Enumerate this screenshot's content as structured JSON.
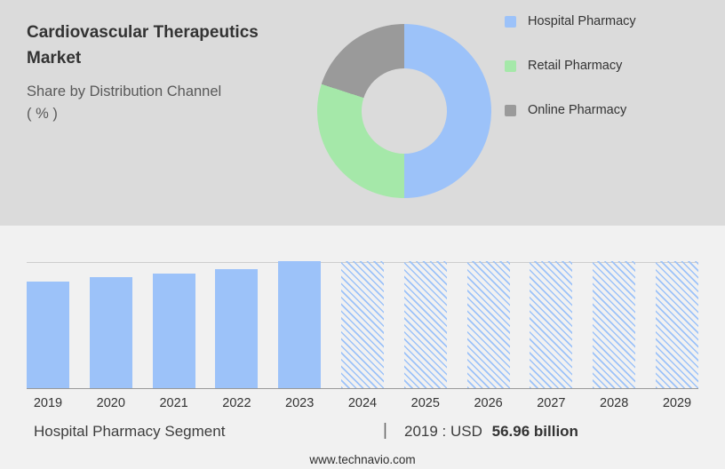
{
  "header": {
    "title": "Cardiovascular Therapeutics Market",
    "subtitle": "Share by Distribution Channel",
    "unit_label": "( % )"
  },
  "legend": {
    "items": [
      {
        "label": "Hospital Pharmacy",
        "color": "#9CC2F9"
      },
      {
        "label": "Retail Pharmacy",
        "color": "#A5E8A9"
      },
      {
        "label": "Online Pharmacy",
        "color": "#9A9A9A"
      }
    ]
  },
  "chart_data": [
    {
      "type": "pie",
      "title": "Cardiovascular Therapeutics Market - Share by Distribution Channel ( % )",
      "labels": [
        "Hospital Pharmacy",
        "Retail Pharmacy",
        "Online Pharmacy"
      ],
      "values": [
        50,
        30,
        20
      ],
      "colors": [
        "#9CC2F9",
        "#A5E8A9",
        "#9A9A9A"
      ],
      "donut": true,
      "legend_position": "right"
    },
    {
      "type": "bar",
      "title": "Hospital Pharmacy Segment",
      "unit": "USD billion",
      "categories": [
        "2019",
        "2020",
        "2021",
        "2022",
        "2023",
        "2024",
        "2025",
        "2026",
        "2027",
        "2028",
        "2029"
      ],
      "series": [
        {
          "name": "Hospital Pharmacy",
          "values": [
            56.96,
            59.4,
            61.4,
            63.5,
            67.8,
            null,
            null,
            null,
            null,
            null,
            null
          ],
          "values_estimated_except_2019": true,
          "height_fractions": [
            0.84,
            0.875,
            0.905,
            0.935,
            1,
            1,
            1,
            1,
            1,
            1,
            1
          ],
          "styles": [
            "solid",
            "solid",
            "solid",
            "solid",
            "solid",
            "hatched",
            "hatched",
            "hatched",
            "hatched",
            "hatched",
            "hatched"
          ]
        }
      ],
      "known_values": {
        "2019": "USD 56.96 billion"
      },
      "bar_color": "#9CC2F9",
      "forecast_note": "2024-2029 drawn as hatched forecast bars",
      "grid": false,
      "legend_position": "none"
    }
  ],
  "footer": {
    "segment_label": "Hospital Pharmacy Segment",
    "separator": "|",
    "stat_prefix": "2019 : USD",
    "stat_value": "56.96 billion",
    "website": "www.technavio.com"
  },
  "colors": {
    "top_background": "#DBDBDB",
    "bottom_background": "#F1F1F1",
    "bar_blue": "#9CC2F9",
    "pie_green": "#A5E8A9",
    "pie_gray": "#9A9A9A",
    "axis_line": "#9A9A9A",
    "plot_top_line": "#CDCDCD",
    "text_dark": "#333333"
  }
}
